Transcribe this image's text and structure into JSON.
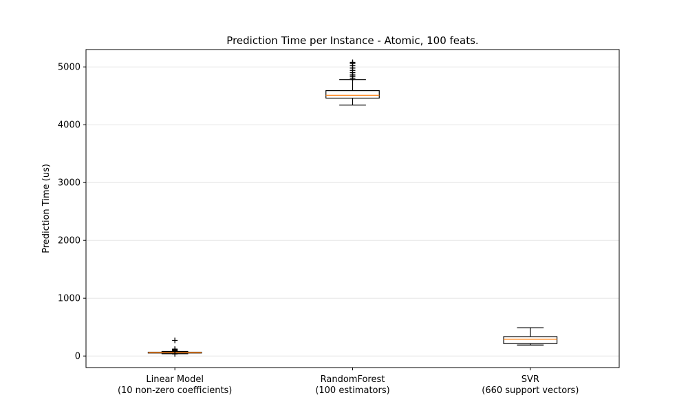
{
  "chart_data": {
    "type": "boxplot",
    "title": "Prediction Time per Instance - Atomic, 100 feats.",
    "xlabel": "",
    "ylabel": "Prediction Time (us)",
    "ylim": [
      -200,
      5300
    ],
    "yticks": [
      0,
      1000,
      2000,
      3000,
      4000,
      5000
    ],
    "grid": "y-axis, light",
    "legend": "none",
    "categories": [
      {
        "line1": "Linear Model",
        "line2": "(10 non-zero coefficients)"
      },
      {
        "line1": "RandomForest",
        "line2": "(100 estimators)"
      },
      {
        "line1": "SVR",
        "line2": "(660 support vectors)"
      }
    ],
    "boxes": [
      {
        "whisker_low": 40,
        "q1": 52,
        "median": 56,
        "q3": 65,
        "whisker_high": 80,
        "fliers": [
          270,
          120,
          110,
          100,
          90,
          35
        ]
      },
      {
        "whisker_low": 4340,
        "q1": 4460,
        "median": 4510,
        "q3": 4590,
        "whisker_high": 4780,
        "fliers": [
          4800,
          4830,
          4860,
          4900,
          4940,
          4980,
          5020,
          5060,
          5080
        ]
      },
      {
        "whisker_low": 190,
        "q1": 215,
        "median": 290,
        "q3": 335,
        "whisker_high": 490,
        "fliers": []
      }
    ],
    "colors": {
      "box": "#000000",
      "median": "#ff7f0e",
      "grid": "#e6e6e6",
      "flier": "#000000"
    }
  }
}
